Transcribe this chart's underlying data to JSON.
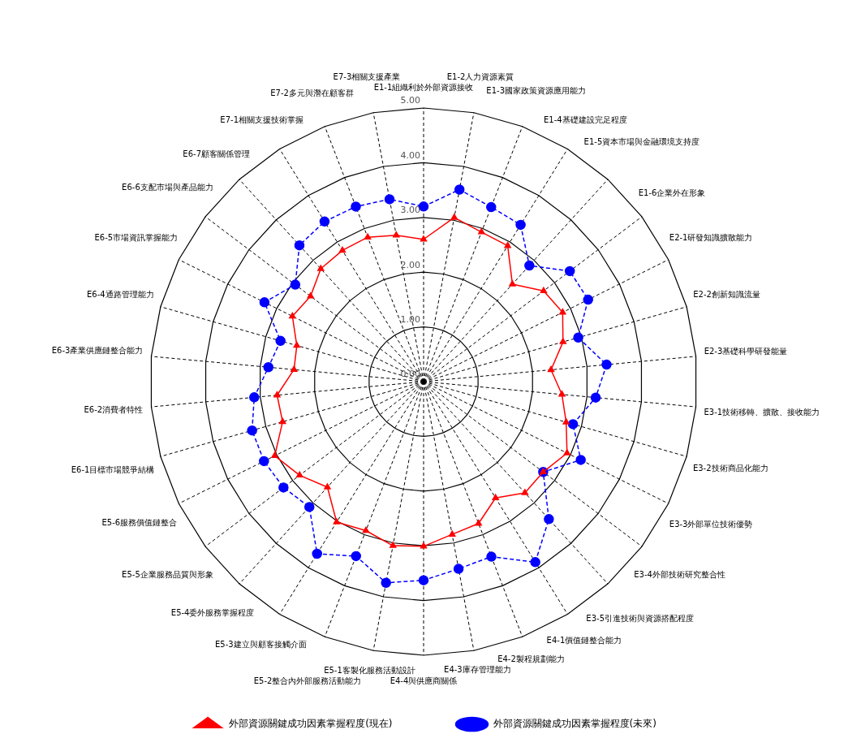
{
  "chart_data": {
    "type": "radar",
    "categories": [
      "E1-1組織利於外部資源接收",
      "E1-2人力資源素質",
      "E1-3國家政策資源應用能力",
      "E1-4基礎建設完足程度",
      "E1-5資本市場與金融環境支持度",
      "E1-6企業外在形象",
      "E2-1研發知識擴散能力",
      "E2-2創新知識流量",
      "E2-3基礎科學研發能量",
      "E3-1技術移轉、擴散、接收能力",
      "E3-2技術商品化能力",
      "E3-3外部單位技術優勢",
      "E3-4外部技術研究整合性",
      "E3-5引進技術與資源搭配程度",
      "E4-1價值鏈整合能力",
      "E4-2製程規劃能力",
      "E4-3庫存管理能力",
      "E4-4與供應商關係",
      "E5-1客製化服務活動設計",
      "E5-2整合內外部服務活動能力",
      "E5-3建立與顧客接觸介面",
      "E5-4委外服務掌握程度",
      "E5-5企業服務品質與形象",
      "E5-6服務價值鏈整合",
      "E6-1目標市場競爭結構",
      "E6-2消費者特性",
      "E6-3產業供應鏈整合能力",
      "E6-4通路管理能力",
      "E6-5市場資訊掌握能力",
      "E6-6支配市場與產品能力",
      "E6-7顧客關係管理",
      "E7-1相關支援技術掌握",
      "E7-2多元與潛在顧客群",
      "E7-3相關支援產業"
    ],
    "series": [
      {
        "name": "外部資源關鍵成功因素掌握程度(現在)",
        "color": "#ff0000",
        "marker": "triangle",
        "line_style": "solid",
        "values": [
          2.6,
          3.05,
          2.93,
          2.92,
          2.41,
          2.75,
          2.84,
          2.65,
          2.34,
          2.54,
          2.71,
          2.93,
          2.74,
          2.75,
          2.5,
          2.78,
          2.84,
          3.01,
          3.05,
          2.92,
          3.02,
          2.61,
          2.84,
          3.04,
          2.68,
          2.69,
          2.38,
          2.41,
          2.68,
          2.59,
          2.79,
          2.82,
          2.83,
          2.72
        ]
      },
      {
        "name": "外部資源關鍵成功因素掌握程度(未來)",
        "color": "#0000ff",
        "marker": "circle",
        "line_style": "dashed",
        "values": [
          3.2,
          3.57,
          3.42,
          3.37,
          2.87,
          3.35,
          3.36,
          2.94,
          3.36,
          3.16,
          2.84,
          3.21,
          2.74,
          3.4,
          3.88,
          3.43,
          3.48,
          3.63,
          3.74,
          3.42,
          3.7,
          3.1,
          3.21,
          3.26,
          3.26,
          3.11,
          2.85,
          2.72,
          3.25,
          2.94,
          3.37,
          3.44,
          3.43,
          3.39
        ]
      }
    ],
    "ylim": [
      0,
      5
    ],
    "yticks": [
      {
        "value": 0,
        "label": "0.00"
      },
      {
        "value": 1,
        "label": "1.00"
      },
      {
        "value": 2,
        "label": "2.00"
      },
      {
        "value": 3,
        "label": "3.00"
      },
      {
        "value": 4,
        "label": "4.00"
      },
      {
        "value": 5,
        "label": "5.00"
      }
    ],
    "grid": true,
    "legend": "bottom"
  }
}
